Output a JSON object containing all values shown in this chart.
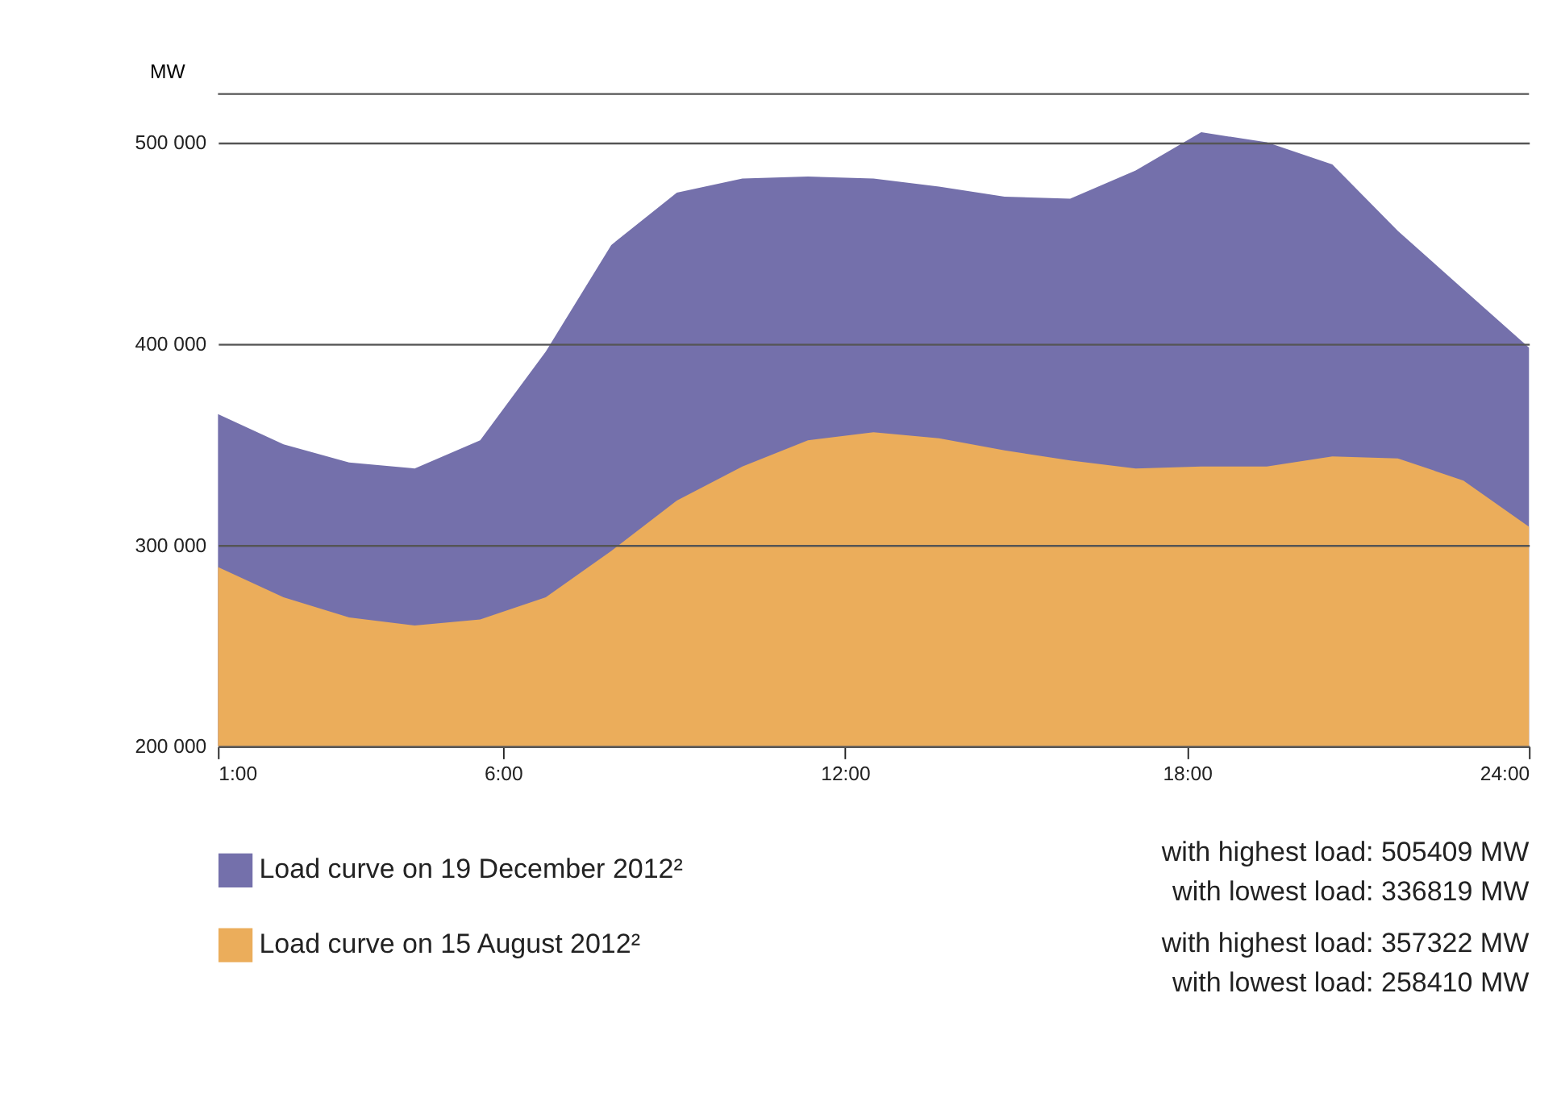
{
  "chart_data": {
    "type": "area",
    "ylabel": "MW",
    "x": [
      1,
      2.15,
      3.3,
      4.45,
      5.6,
      6.75,
      7.9,
      9.05,
      10.2,
      11.35,
      12.5,
      13.65,
      14.8,
      15.95,
      17.1,
      18.25,
      19.4,
      20.55,
      21.7,
      22.85,
      24
    ],
    "xlim": [
      1,
      24
    ],
    "xticks": [
      {
        "value": 1,
        "label": "1:00"
      },
      {
        "value": 6,
        "label": "6:00"
      },
      {
        "value": 12,
        "label": "12:00"
      },
      {
        "value": 18,
        "label": "18:00"
      },
      {
        "value": 24,
        "label": "24:00"
      }
    ],
    "ylim": [
      200000,
      524000
    ],
    "yticks": [
      {
        "value": 200000,
        "label": "200 000"
      },
      {
        "value": 300000,
        "label": "300 000"
      },
      {
        "value": 400000,
        "label": "400 000"
      },
      {
        "value": 500000,
        "label": "500 000"
      }
    ],
    "series": [
      {
        "name": "Load curve on 19 December 2012²",
        "color": "#7470ab",
        "values": [
          365000,
          350000,
          341000,
          338000,
          352000,
          396000,
          449000,
          475000,
          482000,
          483000,
          482000,
          478000,
          473000,
          472000,
          486000,
          505000,
          500000,
          489000,
          456000,
          427000,
          398000
        ]
      },
      {
        "name": "Load curve on 15 August 2012²",
        "color": "#ebad5b",
        "values": [
          289000,
          274000,
          264000,
          260000,
          263000,
          274000,
          297000,
          322000,
          339000,
          352000,
          356000,
          353000,
          347000,
          342000,
          338000,
          339000,
          339000,
          344000,
          343000,
          332000,
          309000
        ]
      }
    ],
    "grid": "y",
    "legend": "bottom",
    "annotations": [
      "with highest load: 505409 MW",
      "with lowest load: 336819 MW",
      "with highest load: 357322 MW",
      "with lowest load: 258410 MW"
    ]
  }
}
